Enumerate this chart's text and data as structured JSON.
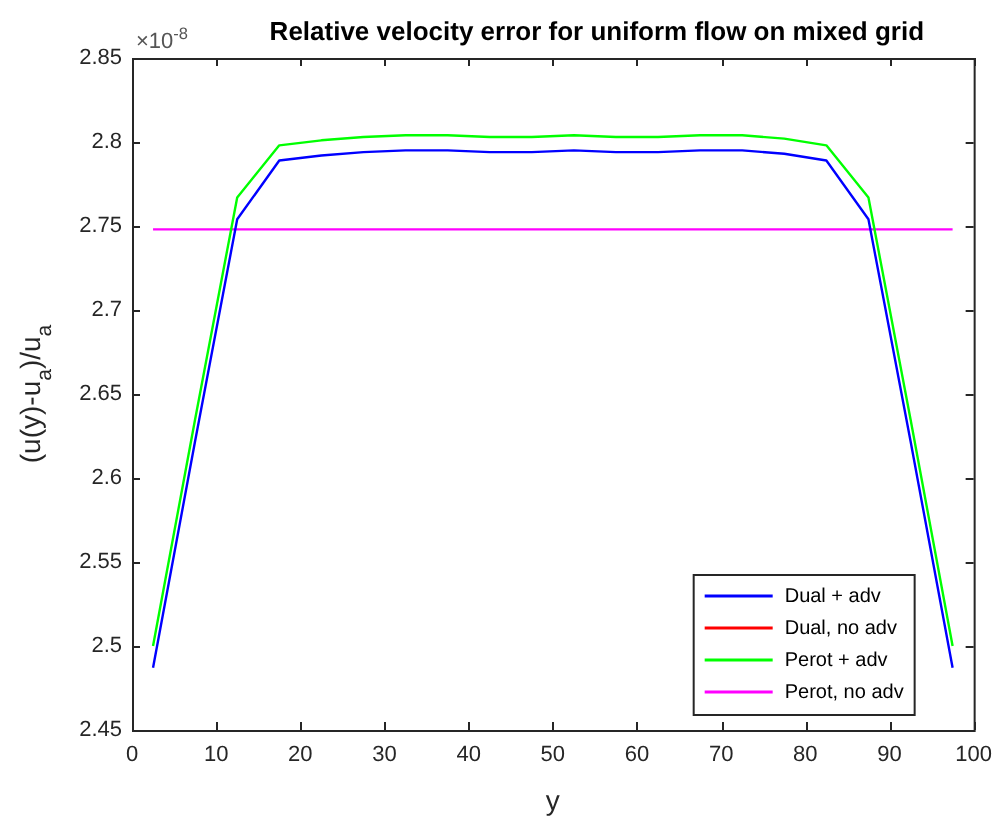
{
  "chart_data": {
    "type": "line",
    "title": "Relative velocity error for uniform flow on mixed grid",
    "xlabel": "y",
    "ylabel": "(u(y)-u$_{a}$)/u$_{a}$",
    "annotations": [
      "×10$^{-8}$"
    ],
    "x": [
      2.5,
      7.5,
      12.5,
      17.5,
      22.5,
      27.5,
      32.5,
      37.5,
      42.5,
      47.5,
      52.5,
      57.5,
      62.5,
      67.5,
      72.5,
      77.5,
      82.5,
      87.5,
      92.5,
      97.5
    ],
    "series": [
      {
        "name": "Dual + adv",
        "color": "#0000ff",
        "values": [
          2.487,
          2.622,
          2.754,
          2.789,
          2.792,
          2.794,
          2.795,
          2.795,
          2.794,
          2.794,
          2.795,
          2.794,
          2.794,
          2.795,
          2.795,
          2.793,
          2.789,
          2.754,
          2.622,
          2.487
        ]
      },
      {
        "name": "Dual, no adv",
        "color": "#ff0000",
        "values": [
          null,
          null,
          null,
          null,
          null,
          null,
          null,
          null,
          null,
          null,
          null,
          null,
          null,
          null,
          null,
          null,
          null,
          null,
          null,
          null
        ]
      },
      {
        "name": "Perot + adv",
        "color": "#00ff00",
        "values": [
          2.5,
          2.635,
          2.767,
          2.798,
          2.801,
          2.803,
          2.804,
          2.804,
          2.803,
          2.803,
          2.804,
          2.803,
          2.803,
          2.804,
          2.804,
          2.802,
          2.798,
          2.767,
          2.635,
          2.5
        ]
      },
      {
        "name": "Perot, no adv",
        "color": "#ff00ff",
        "values": [
          2.748,
          2.748,
          2.748,
          2.748,
          2.748,
          2.748,
          2.748,
          2.748,
          2.748,
          2.748,
          2.748,
          2.748,
          2.748,
          2.748,
          2.748,
          2.748,
          2.748,
          2.748,
          2.748,
          2.748
        ]
      }
    ],
    "xlim": [
      0,
      100
    ],
    "xticks": [
      0,
      10,
      20,
      30,
      40,
      50,
      60,
      70,
      80,
      90,
      100
    ],
    "ylim": [
      2.45,
      2.85
    ],
    "yticks": [
      2.45,
      2.5,
      2.55,
      2.6,
      2.65,
      2.7,
      2.75,
      2.8,
      2.85
    ],
    "grid": false,
    "legend": "bottom right",
    "marker": "none",
    "line_style": "solid"
  }
}
